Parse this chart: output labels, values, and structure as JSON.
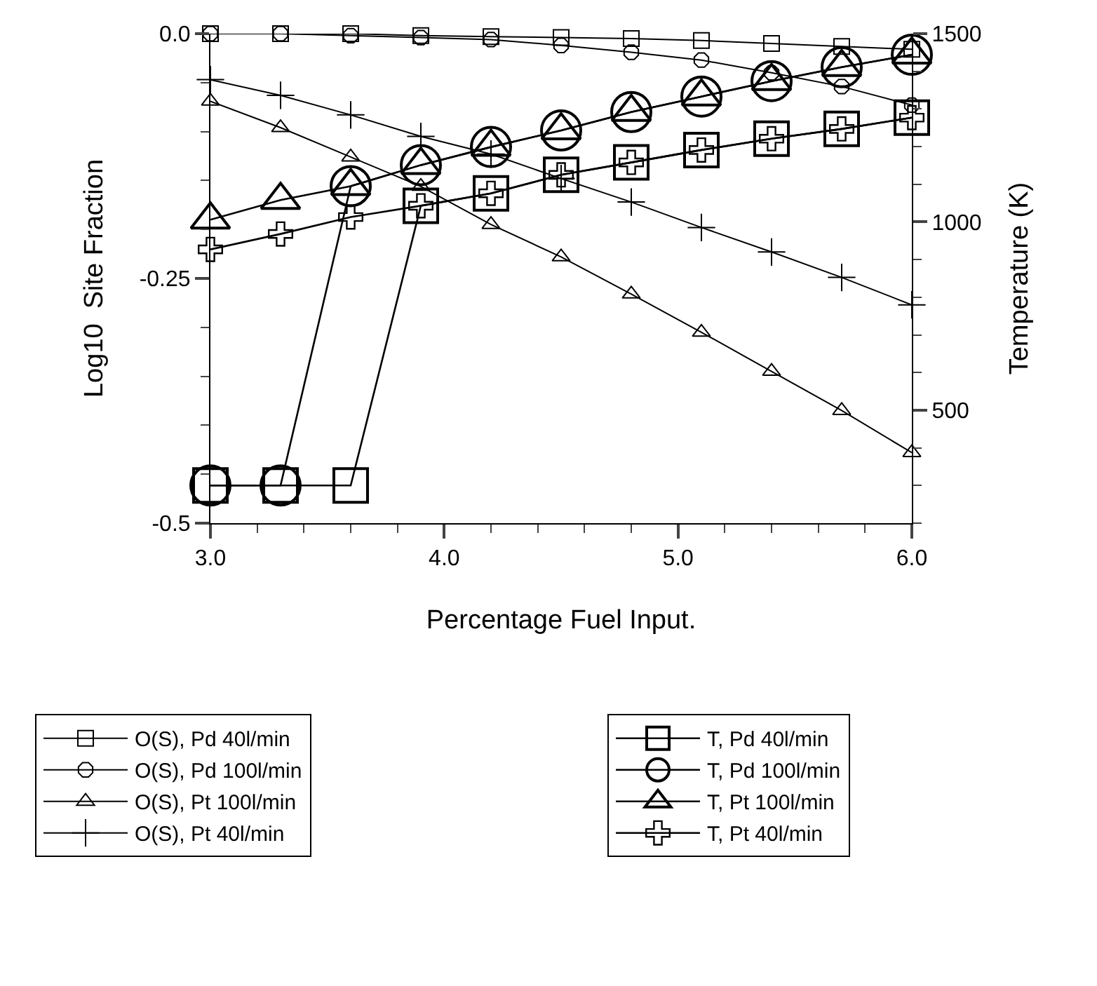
{
  "chart_data": {
    "type": "line",
    "xlabel": "Percentage Fuel Input.",
    "ylabel": "Log10  Site Fraction",
    "y2label": "Temperature (K)",
    "x": [
      3.0,
      3.3,
      3.6,
      3.9,
      4.2,
      4.5,
      4.8,
      5.1,
      5.4,
      5.7,
      6.0
    ],
    "xlim": [
      3.0,
      6.0
    ],
    "xticks": [
      {
        "value": 3,
        "label": "3.0"
      },
      {
        "value": 3.2,
        "label": null
      },
      {
        "value": 3.4,
        "label": null
      },
      {
        "value": 3.6,
        "label": null
      },
      {
        "value": 3.8,
        "label": null
      },
      {
        "value": 4,
        "label": "4.0"
      },
      {
        "value": 4.2,
        "label": null
      },
      {
        "value": 4.4,
        "label": null
      },
      {
        "value": 4.6,
        "label": null
      },
      {
        "value": 4.8,
        "label": null
      },
      {
        "value": 5,
        "label": "5.0"
      },
      {
        "value": 5.2,
        "label": null
      },
      {
        "value": 5.4,
        "label": null
      },
      {
        "value": 5.6,
        "label": null
      },
      {
        "value": 5.8,
        "label": null
      },
      {
        "value": 6,
        "label": "6.0"
      }
    ],
    "ylim": [
      -0.5,
      0.0
    ],
    "yticks": [
      {
        "value": -0.5,
        "label": "-0.5"
      },
      {
        "value": -0.45,
        "label": null
      },
      {
        "value": -0.4,
        "label": null
      },
      {
        "value": -0.35,
        "label": null
      },
      {
        "value": -0.3,
        "label": null
      },
      {
        "value": -0.25,
        "label": "-0.25"
      },
      {
        "value": -0.2,
        "label": null
      },
      {
        "value": -0.15,
        "label": null
      },
      {
        "value": -0.1,
        "label": null
      },
      {
        "value": -0.05,
        "label": null
      },
      {
        "value": 0,
        "label": "0.0"
      }
    ],
    "y2lim": [
      200,
      1500
    ],
    "y2ticks": [
      {
        "value": 200,
        "label": null
      },
      {
        "value": 300,
        "label": null
      },
      {
        "value": 400,
        "label": null
      },
      500,
      {
        "value": 600,
        "label": null
      },
      {
        "value": 700,
        "label": null
      },
      {
        "value": 800,
        "label": null
      },
      {
        "value": 900,
        "label": null
      },
      1000,
      {
        "value": 1100,
        "label": null
      },
      {
        "value": 1200,
        "label": null
      },
      {
        "value": 1300,
        "label": null
      },
      {
        "value": 1400,
        "label": null
      },
      1500
    ],
    "grid": false,
    "legend": "bottom",
    "line_style": "solid",
    "series": [
      {
        "name": "O(S), Pd 40l/min",
        "color": "#000000",
        "marker": "square",
        "values": [
          0.0,
          0.0,
          0.0,
          -0.002,
          -0.003,
          -0.004,
          -0.005,
          -0.007,
          -0.01,
          -0.013,
          -0.016
        ]
      },
      {
        "name": "O(S), Pd 100l/min",
        "color": "#000000",
        "marker": "circle",
        "values": [
          0.0,
          0.0,
          -0.002,
          -0.004,
          -0.006,
          -0.012,
          -0.019,
          -0.027,
          -0.04,
          -0.054,
          -0.073
        ]
      },
      {
        "name": "O(S), Pt 100l/min",
        "color": "#000000",
        "marker": "triangle",
        "values": [
          -0.069,
          -0.096,
          -0.126,
          -0.156,
          -0.195,
          -0.228,
          -0.266,
          -0.305,
          -0.345,
          -0.385,
          -0.428
        ]
      },
      {
        "name": "O(S), Pt 40l/min",
        "color": "#000000",
        "marker": "cross",
        "values": [
          -0.047,
          -0.063,
          -0.083,
          -0.105,
          -0.123,
          -0.148,
          -0.172,
          -0.198,
          -0.223,
          -0.249,
          -0.277
        ]
      },
      {
        "name": "T, Pd 40l/min",
        "color": "#000000",
        "marker": "square",
        "axis": "y2",
        "values": [
          300,
          300,
          300,
          1043,
          1076,
          1125,
          1158,
          1191,
          1221,
          1247,
          1277
        ]
      },
      {
        "name": "T, Pd 100l/min",
        "color": "#000000",
        "marker": "circle",
        "axis": "y2",
        "values": [
          300,
          300,
          1095,
          1151,
          1199,
          1243,
          1292,
          1333,
          1374,
          1411,
          1444
        ]
      },
      {
        "name": "T, Pt 100l/min",
        "color": "#000000",
        "marker": "triangle",
        "axis": "y2",
        "values": [
          1006,
          1058,
          1095,
          1151,
          1199,
          1243,
          1292,
          1333,
          1374,
          1411,
          1444
        ]
      },
      {
        "name": "T, Pt 40l/min",
        "color": "#000000",
        "marker": "cross",
        "axis": "y2",
        "values": [
          927,
          968,
          1013,
          1043,
          1076,
          1125,
          1158,
          1191,
          1221,
          1247,
          1277
        ]
      }
    ]
  }
}
